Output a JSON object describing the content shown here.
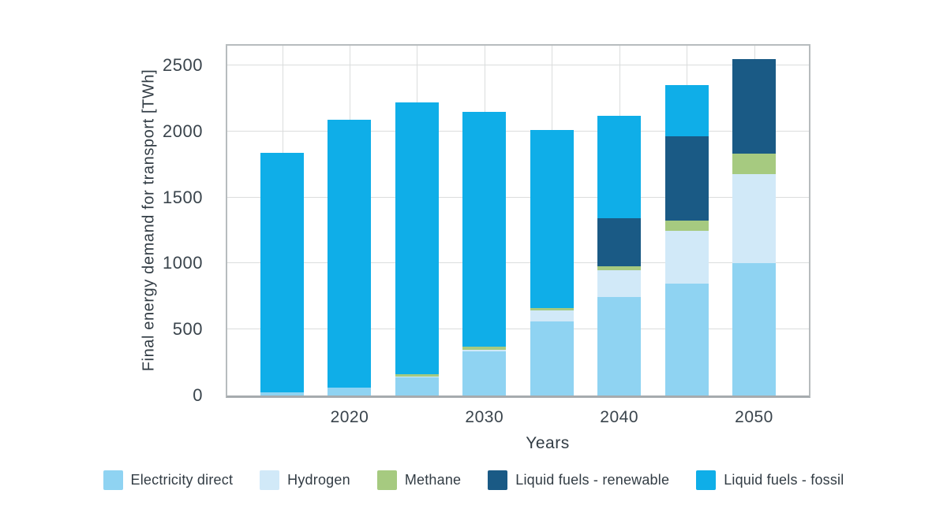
{
  "chart_data": {
    "type": "bar",
    "stacked": true,
    "title": "",
    "xlabel": "Years",
    "ylabel": "Final energy demand for transport [TWh]",
    "years": [
      2015,
      2020,
      2025,
      2030,
      2035,
      2040,
      2045,
      2050
    ],
    "x_tick_labels": [
      "",
      "2020",
      "",
      "2030",
      "",
      "2040",
      "",
      "2050"
    ],
    "y_ticks": [
      0,
      500,
      1000,
      1500,
      2000,
      2500
    ],
    "ylim": [
      0,
      2650
    ],
    "grid": true,
    "legend_position": "bottom",
    "series": [
      {
        "name": "Electricity direct",
        "color": "#8fd3f2",
        "values": [
          25,
          60,
          140,
          335,
          560,
          745,
          845,
          1000
        ]
      },
      {
        "name": "Hydrogen",
        "color": "#d1e9f8",
        "values": [
          0,
          0,
          5,
          10,
          85,
          205,
          405,
          675
        ]
      },
      {
        "name": "Methane",
        "color": "#a6ca80",
        "values": [
          0,
          0,
          15,
          25,
          20,
          30,
          75,
          160
        ]
      },
      {
        "name": "Liquid fuels - renewable",
        "color": "#1a5a85",
        "values": [
          0,
          0,
          0,
          0,
          0,
          365,
          640,
          715
        ]
      },
      {
        "name": "Liquid fuels - fossil",
        "color": "#0faee8",
        "values": [
          1815,
          2030,
          2060,
          1780,
          1345,
          775,
          385,
          0
        ]
      }
    ],
    "totals": [
      1840,
      2090,
      2220,
      2150,
      2010,
      2120,
      2350,
      2550
    ]
  }
}
